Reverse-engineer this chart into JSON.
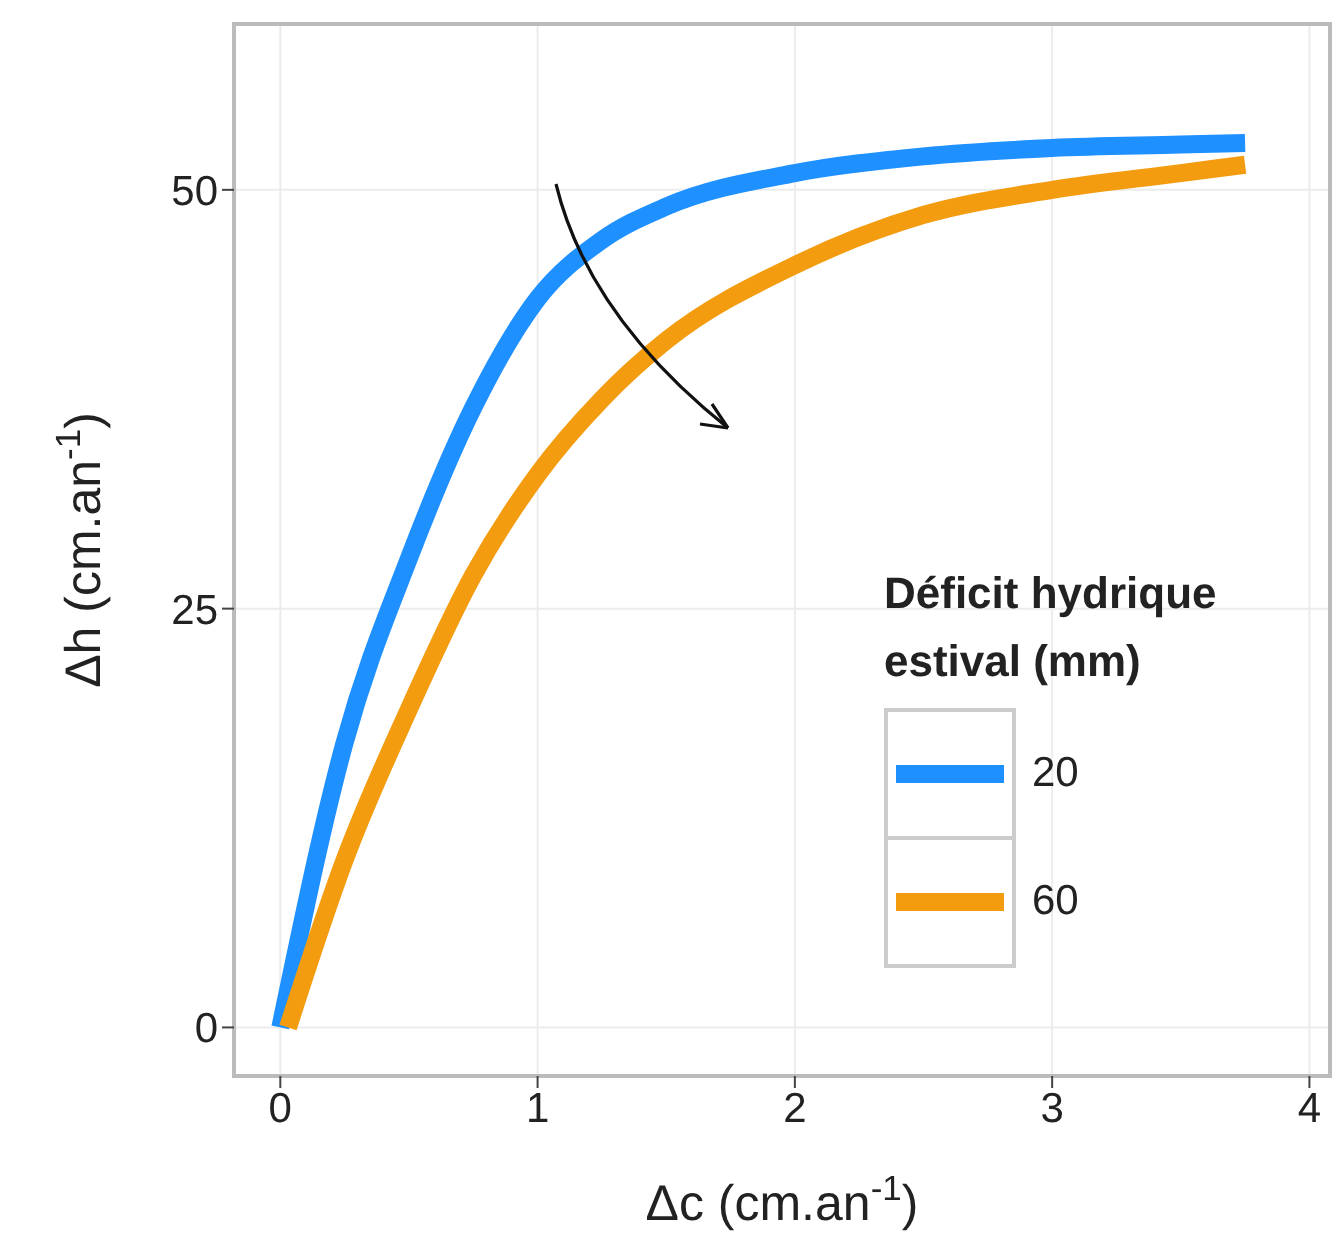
{
  "chart_data": {
    "type": "line",
    "xlabel": "Δc (cm.an$^{-1}$)",
    "ylabel": "Δh (cm.an$^{-1}$)",
    "legend_title": "Déficit hydrique estival (mm)",
    "legend": "bottom right",
    "grid": true,
    "marker": "none",
    "line_style": "solid",
    "xlim": [
      -0.18,
      4.08
    ],
    "xticks": [
      0,
      1,
      2,
      3,
      4
    ],
    "ylim": [
      -2.9,
      59.9
    ],
    "yticks": [
      0,
      25,
      50
    ],
    "series": [
      {
        "name": "20",
        "color": "#1e90ff",
        "x": [
          0,
          0.25,
          0.5,
          0.75,
          1,
          1.25,
          1.5,
          2,
          2.5,
          3,
          3.5,
          3.75
        ],
        "values": [
          0,
          17,
          28,
          37,
          43.5,
          47,
          49,
          51,
          52,
          52.5,
          52.7,
          52.8
        ]
      },
      {
        "name": "60",
        "color": "#f39c0f",
        "x": [
          0.03,
          0.25,
          0.5,
          0.75,
          1,
          1.25,
          1.5,
          2,
          2.5,
          3,
          3.5,
          3.75
        ],
        "values": [
          0,
          10,
          19,
          27,
          33,
          37.5,
          41,
          45.5,
          48.5,
          50,
          51,
          51.5
        ]
      }
    ]
  }
}
